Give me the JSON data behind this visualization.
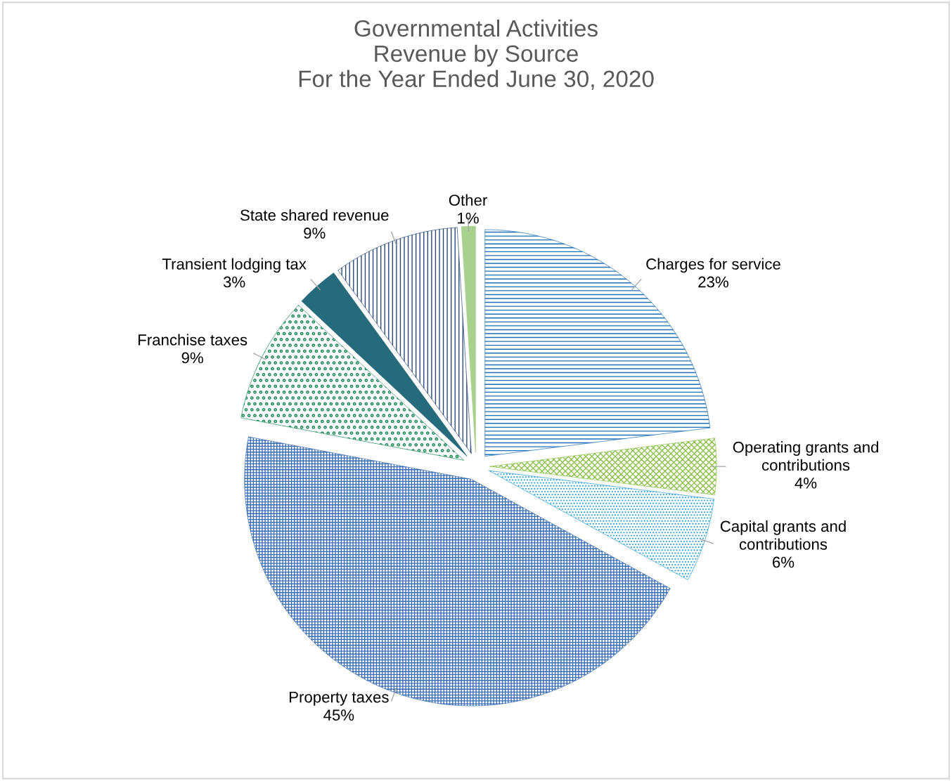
{
  "chart_data": {
    "type": "pie",
    "title": "Governmental Activities\nRevenue by Source\nFor the Year Ended June 30, 2020",
    "categories": [
      "Charges for service",
      "Operating grants and\ncontributions",
      "Capital grants and\ncontributions",
      "Property taxes",
      "Franchise taxes",
      "Transient lodging tax",
      "State shared revenue",
      "Other"
    ],
    "values": [
      23,
      4,
      6,
      45,
      9,
      3,
      9,
      1
    ],
    "value_labels": [
      "23%",
      "4%",
      "6%",
      "45%",
      "9%",
      "3%",
      "9%",
      "1%"
    ],
    "colors": [
      "#1f6fb8",
      "#8cc04a",
      "#2a9fd6",
      "#3a6db3",
      "#1e8a5a",
      "#266b7b",
      "#2b4a7a",
      "#a9d18e"
    ]
  }
}
